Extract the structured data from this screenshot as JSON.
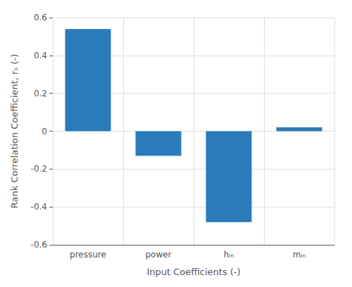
{
  "chart_data": {
    "type": "bar",
    "categories": [
      "pressure",
      "power",
      "hᵢₙ",
      "mᵢₙ"
    ],
    "values": [
      0.54,
      -0.13,
      -0.48,
      0.02
    ],
    "color": "#2b7bba",
    "xlabel": "Input Coefficients (-)",
    "ylabel": "Rank Correlation Coefficient, rₛ (-)",
    "ylim": [
      -0.6,
      0.6
    ],
    "yticks": [
      -0.6,
      -0.4,
      -0.2,
      0.0,
      0.2,
      0.4,
      0.6
    ],
    "grid": true
  }
}
